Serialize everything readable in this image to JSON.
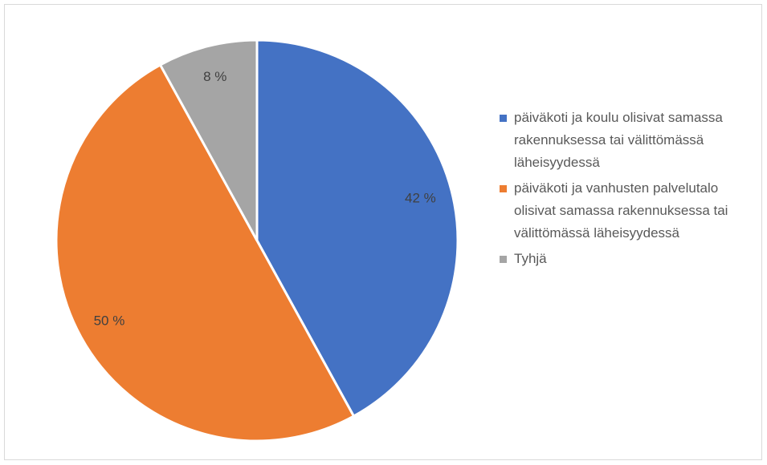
{
  "chart_data": {
    "type": "pie",
    "categories": [
      "päiväkoti ja koulu olisivat samassa rakennuksessa tai välittömässä läheisyydessä",
      "päiväkoti ja vanhusten palvelutalo olisivat samassa rakennuksessa tai välittömässä läheisyydessä",
      "Tyhjä"
    ],
    "values": [
      42,
      50,
      8
    ],
    "value_labels": [
      "42 %",
      "50 %",
      "8 %"
    ],
    "colors": [
      "#4472c4",
      "#ed7d31",
      "#a5a5a5"
    ],
    "legend": "right"
  }
}
